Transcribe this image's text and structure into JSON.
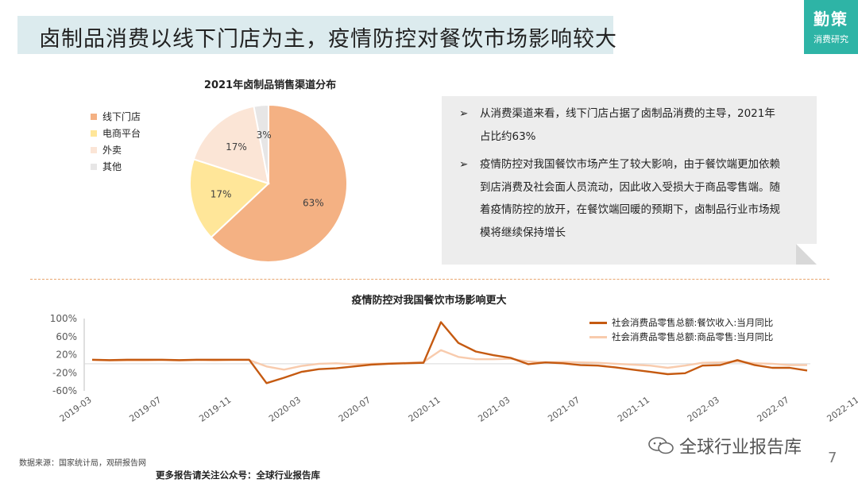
{
  "header": {
    "title": "卤制品消费以线下门店为主，疫情防控对餐饮市场影响较大",
    "brand_main": "勤策",
    "brand_sub": "消费研究",
    "title_bg": "#dcebee",
    "brand_bg": "#2eb4a6"
  },
  "text_panel": {
    "bullets": [
      "从消费渠道来看，线下门店占据了卤制品消费的主导，2021年占比约63%",
      "疫情防控对我国餐饮市场产生了较大影响，由于餐饮端更加依赖到店消费及社会面人员流动，因此收入受损大于商品零售端。随着疫情防控的放开，在餐饮端回暖的预期下，卤制品行业市场规模将继续保持增长"
    ],
    "arrow": "➢"
  },
  "chart_data": [
    {
      "type": "pie",
      "title": "2021年卤制品销售渠道分布",
      "labels": [
        "线下门店",
        "电商平台",
        "外卖",
        "其他"
      ],
      "values": [
        63,
        17,
        17,
        3
      ],
      "value_labels": [
        "63%",
        "17%",
        "17%",
        "3%"
      ],
      "colors": [
        "#f4b183",
        "#ffe699",
        "#fbe5d6",
        "#e7e6e6"
      ],
      "legend_position": "left"
    },
    {
      "type": "line",
      "title": "疫情防控对我国餐饮市场影响更大",
      "ytick_labels": [
        "100%",
        "60%",
        "20%",
        "-20%",
        "-60%"
      ],
      "yticks": [
        100,
        60,
        20,
        -20,
        -60
      ],
      "ylim": [
        -60,
        100
      ],
      "xtick_labels": [
        "2019-03",
        "2019-07",
        "2019-11",
        "2020-03",
        "2020-07",
        "2020-11",
        "2021-03",
        "2021-07",
        "2021-11",
        "2022-03",
        "2022-07",
        "2022-11"
      ],
      "grid": false,
      "legend_position": "top-right",
      "series": [
        {
          "name": "社会消费品零售总额:餐饮收入:当月同比",
          "color": "#c55a11",
          "values": [
            9,
            8,
            9,
            9,
            9,
            8,
            9,
            9,
            9,
            9,
            -43,
            -31,
            -18,
            -12,
            -10,
            -6,
            -2,
            0,
            1,
            2,
            92,
            46,
            27,
            19,
            13,
            -1,
            3,
            1,
            -3,
            -4,
            -8,
            -13,
            -18,
            -23,
            -21,
            -4,
            -3,
            8,
            -3,
            -9,
            -9,
            -15
          ]
        },
        {
          "name": "社会消费品零售总额:商品零售:当月同比",
          "color": "#f8cbad",
          "values": [
            8,
            7,
            7,
            7,
            8,
            7,
            8,
            7,
            8,
            8,
            -6,
            -13,
            -5,
            0,
            1,
            -1,
            0,
            1,
            2,
            4,
            30,
            15,
            10,
            10,
            11,
            5,
            3,
            4,
            3,
            2,
            0,
            -2,
            -4,
            -9,
            -4,
            2,
            3,
            5,
            1,
            0,
            -3,
            -3
          ]
        }
      ]
    }
  ]
}
